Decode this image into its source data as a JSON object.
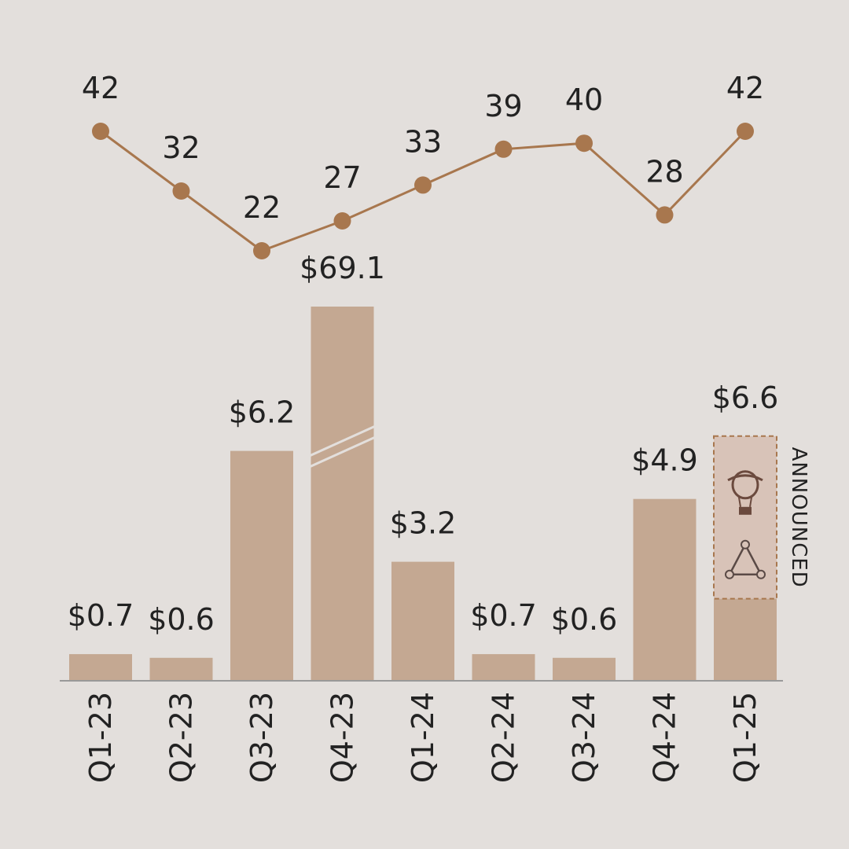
{
  "colors": {
    "background": "#e3dfdc",
    "bar": "#c4a892",
    "line": "#a8774e",
    "announced_fill": "#d8c3b8",
    "announced_border": "#a8774e",
    "axis": "#999999",
    "text": "#222222"
  },
  "chart_data": [
    {
      "type": "line",
      "categories": [
        "Q1-23",
        "Q2-23",
        "Q3-23",
        "Q4-23",
        "Q1-24",
        "Q2-24",
        "Q3-24",
        "Q4-24",
        "Q1-25"
      ],
      "values": [
        42,
        32,
        22,
        27,
        33,
        39,
        40,
        28,
        42
      ],
      "labels": [
        "42",
        "32",
        "22",
        "27",
        "33",
        "39",
        "40",
        "28",
        "42"
      ],
      "grid": false,
      "legend": "none"
    },
    {
      "type": "bar",
      "categories": [
        "Q1-23",
        "Q2-23",
        "Q3-23",
        "Q4-23",
        "Q1-24",
        "Q2-24",
        "Q3-24",
        "Q4-24",
        "Q1-25"
      ],
      "values": [
        0.7,
        0.6,
        6.2,
        69.1,
        3.2,
        0.7,
        0.6,
        4.9,
        6.6
      ],
      "labels": [
        "$0.7",
        "$0.6",
        "$6.2",
        "$69.1",
        "$3.2",
        "$0.7",
        "$0.6",
        "$4.9",
        "$6.6"
      ],
      "axis_break": "Q4-23",
      "announced": {
        "category": "Q1-25",
        "completed_value": 2.2,
        "label": "ANNOUNCED",
        "icons": [
          "hot-air-balloon-logo-icon",
          "triangle-network-logo-icon"
        ]
      },
      "grid": false,
      "legend": "none"
    }
  ]
}
